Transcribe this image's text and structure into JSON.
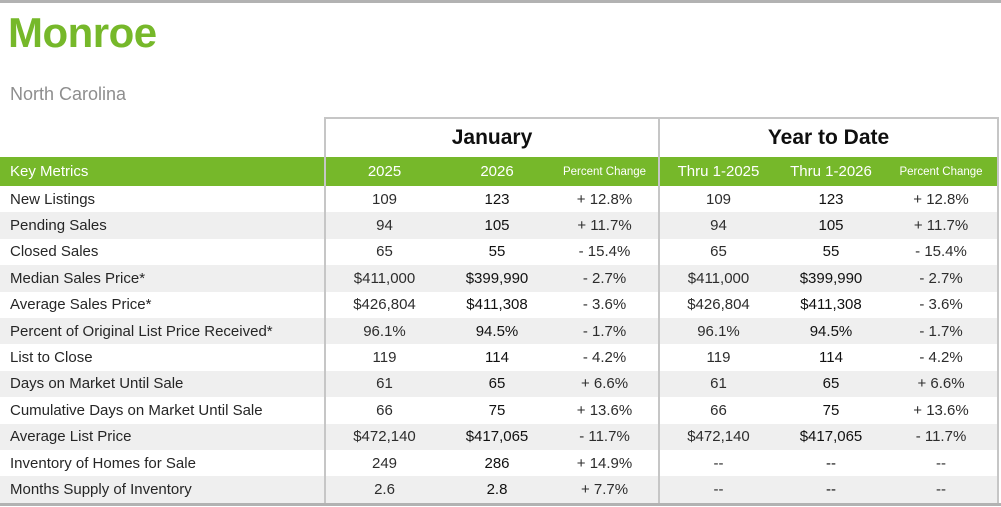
{
  "page": {
    "title": "Monroe",
    "subtitle": "North Carolina"
  },
  "colors": {
    "accent_green": "#76b82a",
    "row_alt_gray": "#efefef",
    "table_border_gray": "#c6c6c6",
    "rule_gray": "#b2b2b2",
    "subtitle_gray": "#8e8e8e"
  },
  "table": {
    "group_headers": {
      "january": "January",
      "year_to_date": "Year to Date"
    },
    "column_headers": {
      "key_metrics": "Key Metrics",
      "jan_2025": "2025",
      "jan_2026": "2026",
      "jan_pct": "Percent Change",
      "ytd_2025": "Thru 1-2025",
      "ytd_2026": "Thru 1-2026",
      "ytd_pct": "Percent Change"
    },
    "rows": [
      {
        "metric": "New Listings",
        "jan_2025": "109",
        "jan_2026": "123",
        "jan_pct": "+ 12.8%",
        "ytd_2025": "109",
        "ytd_2026": "123",
        "ytd_pct": "+ 12.8%"
      },
      {
        "metric": "Pending Sales",
        "jan_2025": "94",
        "jan_2026": "105",
        "jan_pct": "+ 11.7%",
        "ytd_2025": "94",
        "ytd_2026": "105",
        "ytd_pct": "+ 11.7%"
      },
      {
        "metric": "Closed Sales",
        "jan_2025": "65",
        "jan_2026": "55",
        "jan_pct": "- 15.4%",
        "ytd_2025": "65",
        "ytd_2026": "55",
        "ytd_pct": "- 15.4%"
      },
      {
        "metric": "Median Sales Price*",
        "jan_2025": "$411,000",
        "jan_2026": "$399,990",
        "jan_pct": "- 2.7%",
        "ytd_2025": "$411,000",
        "ytd_2026": "$399,990",
        "ytd_pct": "- 2.7%"
      },
      {
        "metric": "Average Sales Price*",
        "jan_2025": "$426,804",
        "jan_2026": "$411,308",
        "jan_pct": "- 3.6%",
        "ytd_2025": "$426,804",
        "ytd_2026": "$411,308",
        "ytd_pct": "- 3.6%"
      },
      {
        "metric": "Percent of Original List Price Received*",
        "jan_2025": "96.1%",
        "jan_2026": "94.5%",
        "jan_pct": "- 1.7%",
        "ytd_2025": "96.1%",
        "ytd_2026": "94.5%",
        "ytd_pct": "- 1.7%"
      },
      {
        "metric": "List to Close",
        "jan_2025": "119",
        "jan_2026": "114",
        "jan_pct": "- 4.2%",
        "ytd_2025": "119",
        "ytd_2026": "114",
        "ytd_pct": "- 4.2%"
      },
      {
        "metric": "Days on Market Until Sale",
        "jan_2025": "61",
        "jan_2026": "65",
        "jan_pct": "+ 6.6%",
        "ytd_2025": "61",
        "ytd_2026": "65",
        "ytd_pct": "+ 6.6%"
      },
      {
        "metric": "Cumulative Days on Market Until Sale",
        "jan_2025": "66",
        "jan_2026": "75",
        "jan_pct": "+ 13.6%",
        "ytd_2025": "66",
        "ytd_2026": "75",
        "ytd_pct": "+ 13.6%"
      },
      {
        "metric": "Average List Price",
        "jan_2025": "$472,140",
        "jan_2026": "$417,065",
        "jan_pct": "- 11.7%",
        "ytd_2025": "$472,140",
        "ytd_2026": "$417,065",
        "ytd_pct": "- 11.7%"
      },
      {
        "metric": "Inventory of Homes for Sale",
        "jan_2025": "249",
        "jan_2026": "286",
        "jan_pct": "+ 14.9%",
        "ytd_2025": "--",
        "ytd_2026": "--",
        "ytd_pct": "--"
      },
      {
        "metric": "Months Supply of Inventory",
        "jan_2025": "2.6",
        "jan_2026": "2.8",
        "jan_pct": "+ 7.7%",
        "ytd_2025": "--",
        "ytd_2026": "--",
        "ytd_pct": "--"
      }
    ]
  }
}
